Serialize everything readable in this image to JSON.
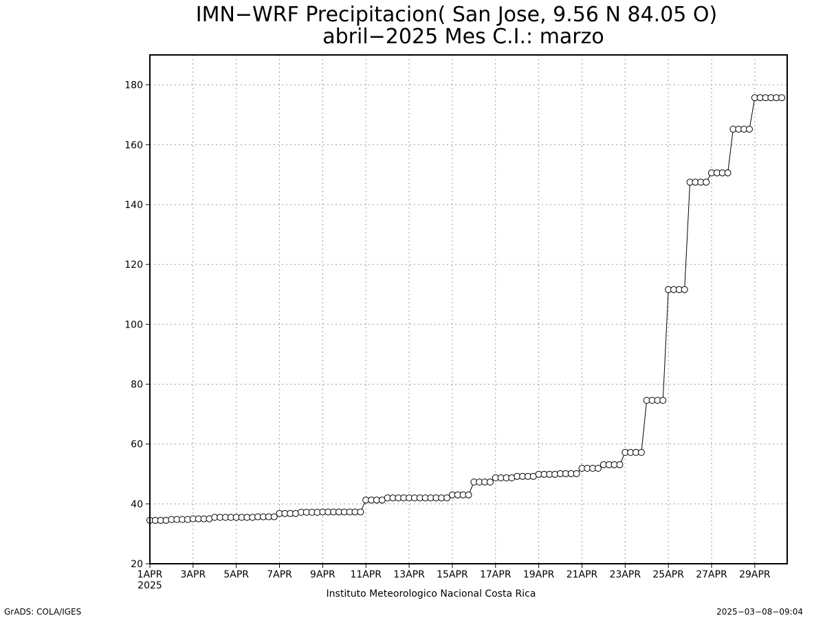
{
  "chart_data": {
    "type": "line",
    "title": "IMN−WRF  Precipitacion( San Jose, 9.56  N 84.05  O)",
    "subtitle": "abril−2025 Mes C.I.: marzo",
    "xlabel": "",
    "ylabel": "",
    "x_unit": "days since 1APR 2025 00Z (6-hourly)",
    "xlim": [
      0,
      29.5
    ],
    "ylim": [
      20,
      190
    ],
    "yticks": [
      20,
      40,
      60,
      80,
      100,
      120,
      140,
      160,
      180
    ],
    "x_tick_labels": [
      "1APR",
      "3APR",
      "5APR",
      "7APR",
      "9APR",
      "11APR",
      "13APR",
      "15APR",
      "17APR",
      "19APR",
      "21APR",
      "23APR",
      "25APR",
      "27APR",
      "29APR"
    ],
    "x_tick_year": "2025",
    "grid": true,
    "marker": "open-circle",
    "values": [
      34.5,
      34.5,
      34.5,
      34.5,
      34.8,
      34.8,
      34.8,
      34.8,
      35.0,
      35.0,
      35.0,
      35.0,
      35.5,
      35.5,
      35.5,
      35.5,
      35.5,
      35.5,
      35.5,
      35.5,
      35.7,
      35.7,
      35.7,
      35.7,
      36.8,
      36.8,
      36.8,
      36.8,
      37.2,
      37.2,
      37.2,
      37.2,
      37.3,
      37.3,
      37.3,
      37.3,
      37.3,
      37.3,
      37.3,
      37.3,
      41.3,
      41.3,
      41.3,
      41.3,
      42.0,
      42.0,
      42.0,
      42.0,
      42.0,
      42.0,
      42.0,
      42.0,
      42.0,
      42.0,
      42.0,
      42.0,
      43.0,
      43.0,
      43.0,
      43.0,
      47.3,
      47.3,
      47.3,
      47.3,
      48.7,
      48.7,
      48.7,
      48.7,
      49.2,
      49.2,
      49.2,
      49.2,
      49.9,
      49.9,
      49.9,
      49.9,
      50.1,
      50.1,
      50.1,
      50.1,
      51.9,
      51.9,
      51.9,
      51.9,
      53.1,
      53.1,
      53.1,
      53.1,
      57.2,
      57.2,
      57.2,
      57.2,
      74.6,
      74.6,
      74.6,
      74.6,
      111.6,
      111.6,
      111.6,
      111.6,
      147.5,
      147.5,
      147.5,
      147.5,
      150.6,
      150.6,
      150.6,
      150.6,
      165.2,
      165.2,
      165.2,
      165.2,
      175.7,
      175.7,
      175.7,
      175.7,
      175.7,
      175.7
    ]
  },
  "footer": {
    "institution": "Instituto Meteorologico Nacional Costa Rica",
    "software": "GrADS: COLA/IGES",
    "timestamp": "2025−03−08−09:04"
  }
}
